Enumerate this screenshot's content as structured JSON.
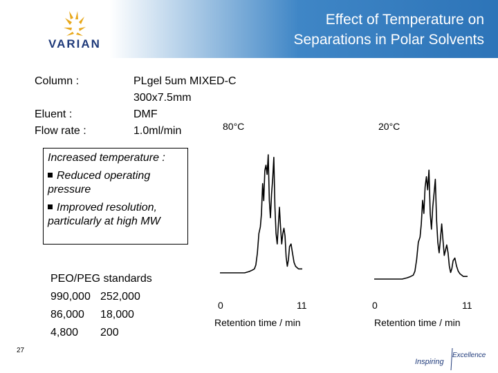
{
  "header": {
    "logo_text": "VARIAN",
    "title_line1": "Effect of Temperature on",
    "title_line2": "Separations in Polar Solvents"
  },
  "conditions": {
    "column_label": "Column :",
    "column_value_1": "PLgel 5um MIXED-C",
    "column_value_2": "300x7.5mm",
    "eluent_label": "Eluent :",
    "eluent_value": "DMF",
    "flow_label": "Flow rate :",
    "flow_value": "1.0ml/min"
  },
  "callout": {
    "heading": "Increased temperature :",
    "bullet1_line1": "Reduced operating",
    "bullet1_line2": "pressure",
    "bullet2_line1": "Improved resolution,",
    "bullet2_line2": "particularly at high MW"
  },
  "standards": {
    "heading": "PEO/PEG standards",
    "rows": [
      [
        "990,000",
        "252,000"
      ],
      [
        "86,000",
        "18,000"
      ],
      [
        "4,800",
        "200"
      ]
    ]
  },
  "footer": {
    "page_number": "27",
    "tagline_1": "Inspiring",
    "tagline_2": "Excellence"
  },
  "colors": {
    "header_blue": "#3f86c6",
    "logo_blue": "#1f3a7a",
    "logo_gold": "#e8a81c"
  },
  "chart_data": [
    {
      "type": "line",
      "title": "80°C",
      "xlabel": "Retention time / min",
      "ylabel": "",
      "xlim": [
        0,
        11
      ],
      "ylim": [
        0,
        1
      ],
      "x_tick_labels": [
        "0",
        "11"
      ],
      "grid": false,
      "series": [
        {
          "x": [
            0,
            1.5,
            2.5,
            3.3,
            3.9,
            4.3,
            4.6,
            4.8,
            5.0,
            5.2,
            5.4,
            5.55,
            5.7,
            5.85,
            6.0,
            6.15,
            6.3,
            6.45,
            6.6,
            6.75,
            6.9,
            7.05,
            7.2,
            7.35,
            7.5,
            7.65,
            7.8,
            7.95,
            8.1,
            8.25,
            8.4,
            8.55,
            8.7,
            8.85,
            9.0,
            9.15,
            9.3,
            9.5,
            9.7,
            9.9,
            10.1,
            10.3,
            10.5,
            11.0
          ],
          "y": [
            0.0,
            0.0,
            0.0,
            0.0,
            0.01,
            0.02,
            0.03,
            0.06,
            0.15,
            0.3,
            0.35,
            0.45,
            0.68,
            0.55,
            0.78,
            0.82,
            0.75,
            0.9,
            0.55,
            0.42,
            0.6,
            0.72,
            0.88,
            0.5,
            0.3,
            0.22,
            0.36,
            0.5,
            0.35,
            0.22,
            0.3,
            0.34,
            0.28,
            0.12,
            0.05,
            0.1,
            0.2,
            0.22,
            0.15,
            0.08,
            0.05,
            0.04,
            0.03,
            0.03
          ]
        }
      ]
    },
    {
      "type": "line",
      "title": "20°C",
      "xlabel": "Retention time / min",
      "ylabel": "",
      "xlim": [
        0,
        11
      ],
      "ylim": [
        0,
        1
      ],
      "x_tick_labels": [
        "0",
        "11"
      ],
      "grid": false,
      "series": [
        {
          "x": [
            0,
            1.5,
            2.5,
            3.3,
            3.9,
            4.3,
            4.6,
            4.8,
            5.0,
            5.2,
            5.4,
            5.55,
            5.7,
            5.85,
            6.0,
            6.15,
            6.3,
            6.45,
            6.6,
            6.75,
            6.9,
            7.05,
            7.2,
            7.35,
            7.5,
            7.65,
            7.8,
            7.95,
            8.1,
            8.25,
            8.4,
            8.55,
            8.7,
            8.85,
            9.0,
            9.15,
            9.3,
            9.5,
            9.7,
            9.9,
            10.1,
            10.3,
            10.5,
            11.0
          ],
          "y": [
            0.0,
            0.0,
            0.0,
            0.0,
            0.01,
            0.02,
            0.03,
            0.06,
            0.15,
            0.28,
            0.32,
            0.42,
            0.6,
            0.5,
            0.7,
            0.78,
            0.68,
            0.83,
            0.5,
            0.38,
            0.55,
            0.65,
            0.76,
            0.45,
            0.28,
            0.2,
            0.3,
            0.42,
            0.3,
            0.18,
            0.22,
            0.26,
            0.2,
            0.1,
            0.05,
            0.08,
            0.14,
            0.16,
            0.1,
            0.06,
            0.04,
            0.03,
            0.02,
            0.02
          ]
        }
      ]
    }
  ]
}
